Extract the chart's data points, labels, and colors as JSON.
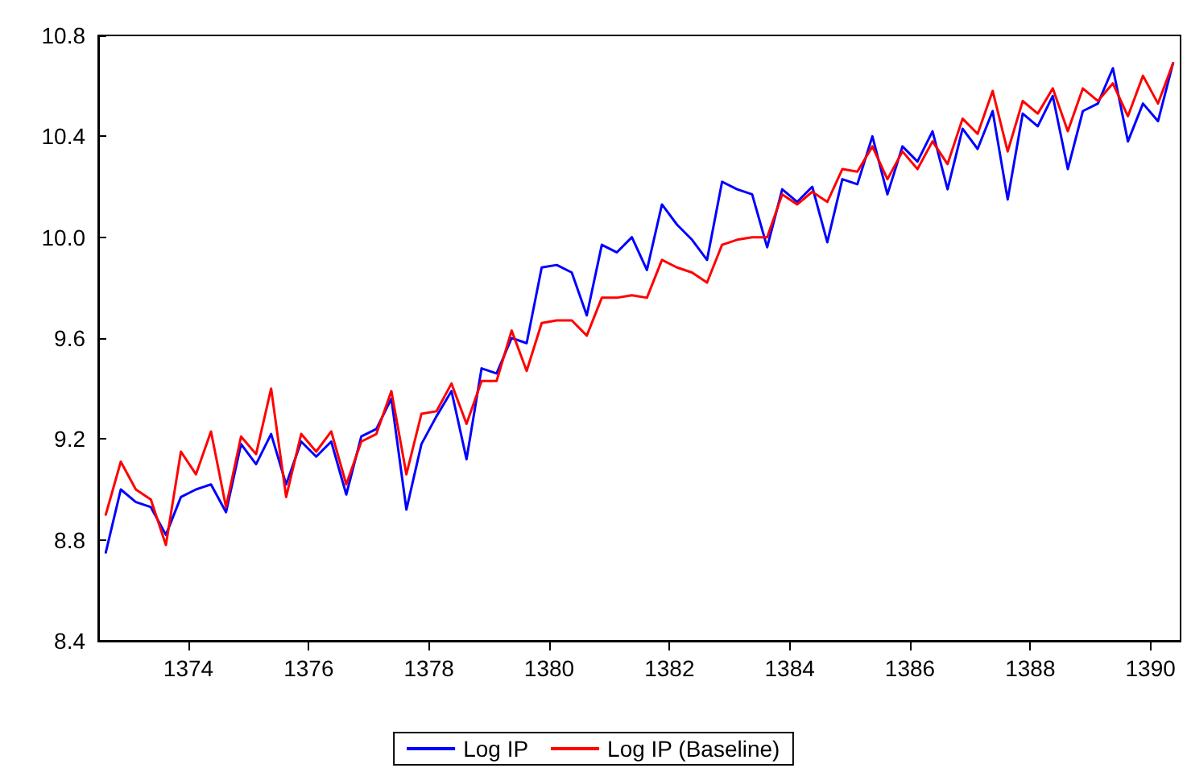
{
  "chart_data": {
    "type": "line",
    "x": [
      1372.625,
      1372.875,
      1373.125,
      1373.375,
      1373.625,
      1373.875,
      1374.125,
      1374.375,
      1374.625,
      1374.875,
      1375.125,
      1375.375,
      1375.625,
      1375.875,
      1376.125,
      1376.375,
      1376.625,
      1376.875,
      1377.125,
      1377.375,
      1377.625,
      1377.875,
      1378.125,
      1378.375,
      1378.625,
      1378.875,
      1379.125,
      1379.375,
      1379.625,
      1379.875,
      1380.125,
      1380.375,
      1380.625,
      1380.875,
      1381.125,
      1381.375,
      1381.625,
      1381.875,
      1382.125,
      1382.375,
      1382.625,
      1382.875,
      1383.125,
      1383.375,
      1383.625,
      1383.875,
      1384.125,
      1384.375,
      1384.625,
      1384.875,
      1385.125,
      1385.375,
      1385.625,
      1385.875,
      1386.125,
      1386.375,
      1386.625,
      1386.875,
      1387.125,
      1387.375,
      1387.625,
      1387.875,
      1388.125,
      1388.375,
      1388.625,
      1388.875,
      1389.125,
      1389.375,
      1389.625,
      1389.875,
      1390.125,
      1390.375
    ],
    "series": [
      {
        "name": "Log IP",
        "color": "#0000ff",
        "values": [
          8.75,
          9.0,
          8.95,
          8.93,
          8.82,
          8.97,
          9.0,
          9.02,
          8.91,
          9.18,
          9.1,
          9.22,
          9.02,
          9.19,
          9.13,
          9.19,
          8.98,
          9.21,
          9.24,
          9.36,
          8.92,
          9.18,
          9.29,
          9.39,
          9.12,
          9.48,
          9.46,
          9.6,
          9.58,
          9.88,
          9.89,
          9.86,
          9.69,
          9.97,
          9.94,
          10.0,
          9.87,
          10.13,
          10.05,
          9.99,
          9.91,
          10.22,
          10.19,
          10.17,
          9.96,
          10.19,
          10.14,
          10.2,
          9.98,
          10.23,
          10.21,
          10.4,
          10.17,
          10.36,
          10.3,
          10.42,
          10.19,
          10.43,
          10.35,
          10.5,
          10.15,
          10.49,
          10.44,
          10.56,
          10.27,
          10.5,
          10.53,
          10.67,
          10.38,
          10.53,
          10.46,
          10.69
        ]
      },
      {
        "name": "Log IP (Baseline)",
        "color": "#ff0000",
        "values": [
          8.9,
          9.11,
          9.0,
          8.96,
          8.78,
          9.15,
          9.06,
          9.23,
          8.93,
          9.21,
          9.14,
          9.4,
          8.97,
          9.22,
          9.15,
          9.23,
          9.02,
          9.19,
          9.22,
          9.39,
          9.06,
          9.3,
          9.31,
          9.42,
          9.26,
          9.43,
          9.43,
          9.63,
          9.47,
          9.66,
          9.67,
          9.67,
          9.61,
          9.76,
          9.76,
          9.77,
          9.76,
          9.91,
          9.88,
          9.86,
          9.82,
          9.97,
          9.99,
          10.0,
          10.0,
          10.17,
          10.13,
          10.18,
          10.14,
          10.27,
          10.26,
          10.36,
          10.23,
          10.34,
          10.27,
          10.38,
          10.29,
          10.47,
          10.41,
          10.58,
          10.34,
          10.54,
          10.49,
          10.59,
          10.42,
          10.59,
          10.54,
          10.61,
          10.48,
          10.64,
          10.53,
          10.69
        ]
      }
    ],
    "xlim": [
      1372.5,
      1390.5
    ],
    "xticks": [
      1374,
      1376,
      1378,
      1380,
      1382,
      1384,
      1386,
      1388,
      1390
    ],
    "ylim": [
      8.4,
      10.8
    ],
    "yticks": [
      8.4,
      8.8,
      9.2,
      9.6,
      {
        "value": 10,
        "label": "10.0"
      },
      10.4,
      10.8
    ],
    "grid": false,
    "legend": "bottom",
    "marker": "none",
    "line_style": "solid"
  }
}
